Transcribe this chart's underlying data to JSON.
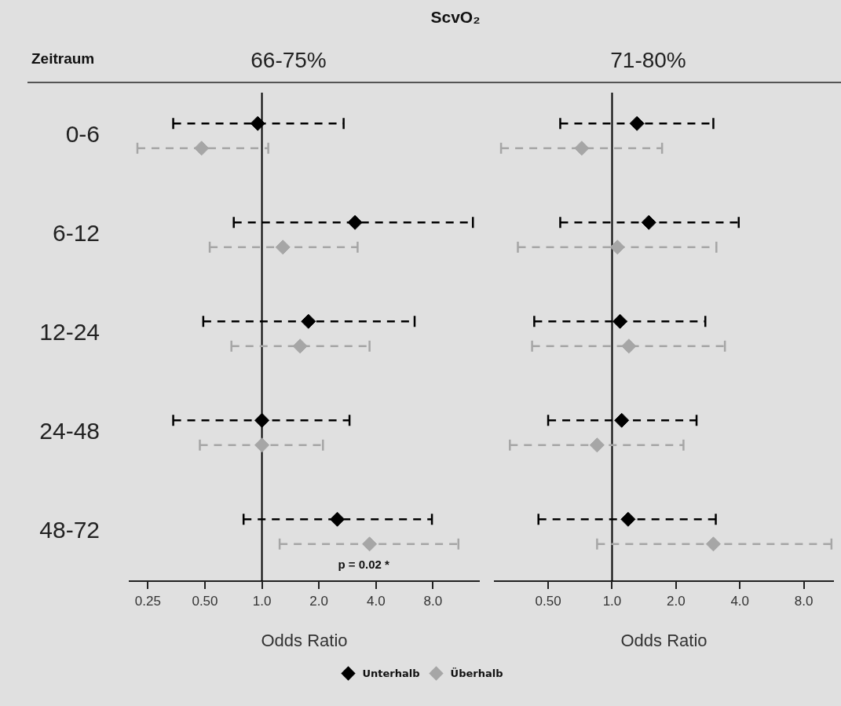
{
  "chart_data": [
    {
      "type": "scatter",
      "title": "ScvO₂",
      "subtitle": "66-75%",
      "ylabel": "Zeitraum",
      "xlabel": "Odds Ratio",
      "orientation": "horizontal",
      "log": "x",
      "marker": "diamond",
      "line_style": "dashed",
      "legend": "bottom",
      "categories": [
        "0-6",
        "6-12",
        "12-24",
        "24-48",
        "48-72"
      ],
      "series": [
        {
          "name": "Unterhalb",
          "color": "#000000",
          "values": [
            0.95,
            3.1,
            1.76,
            1.0,
            2.5
          ],
          "errors": [
            [
              0.34,
              2.7
            ],
            [
              0.71,
              13
            ],
            [
              0.49,
              6.4
            ],
            [
              0.34,
              2.9
            ],
            [
              0.8,
              7.9
            ]
          ]
        },
        {
          "name": "Überhalb",
          "color": "#a6a6a6",
          "values": [
            0.48,
            1.29,
            1.59,
            1.0,
            3.7
          ],
          "errors": [
            [
              0.22,
              1.08
            ],
            [
              0.53,
              3.2
            ],
            [
              0.69,
              3.7
            ],
            [
              0.47,
              2.1
            ],
            [
              1.24,
              10.9
            ]
          ]
        }
      ],
      "xlim": [
        0.2,
        14
      ],
      "xticks": [
        0.25,
        {
          "value": 0.5,
          "label": "0.50"
        },
        {
          "value": 1,
          "label": "1.0"
        },
        {
          "value": 2,
          "label": "2.0"
        },
        {
          "value": 4,
          "label": "4.0"
        },
        {
          "value": 8,
          "label": "8.0"
        }
      ],
      "ref_lines": [
        {
          "axis": "x",
          "value": 1,
          "color": "#000000"
        }
      ],
      "annotations": [
        "p = 0.02 *"
      ]
    },
    {
      "type": "scatter",
      "subtitle": "71-80%",
      "xlabel": "Odds Ratio",
      "orientation": "horizontal",
      "log": "x",
      "marker": "diamond",
      "line_style": "dashed",
      "tick_labels": "x",
      "categories": [
        null,
        null,
        null,
        null,
        null
      ],
      "series": [
        {
          "color": "#000000",
          "values": [
            1.31,
            1.49,
            1.09,
            1.11,
            1.19
          ],
          "errors": [
            [
              0.57,
              3.0
            ],
            [
              0.57,
              3.95
            ],
            [
              0.43,
              2.75
            ],
            [
              0.5,
              2.5
            ],
            [
              0.45,
              3.08
            ]
          ]
        },
        {
          "color": "#a6a6a6",
          "values": [
            0.72,
            1.06,
            1.2,
            0.85,
            3.0
          ],
          "errors": [
            [
              0.3,
              1.72
            ],
            [
              0.36,
              3.1
            ],
            [
              0.42,
              3.4
            ],
            [
              0.33,
              2.17
            ],
            [
              0.85,
              10.8
            ]
          ]
        }
      ],
      "xlim": [
        0.28,
        11
      ],
      "xticks": [
        {
          "value": 0.5,
          "label": "0.50"
        },
        {
          "value": 1,
          "label": "1.0"
        },
        {
          "value": 2,
          "label": "2.0"
        },
        {
          "value": 4,
          "label": "4.0"
        },
        {
          "value": 8,
          "label": "8.0"
        }
      ],
      "ref_lines": [
        {
          "axis": "x",
          "value": 1,
          "color": "#000000"
        }
      ]
    }
  ]
}
